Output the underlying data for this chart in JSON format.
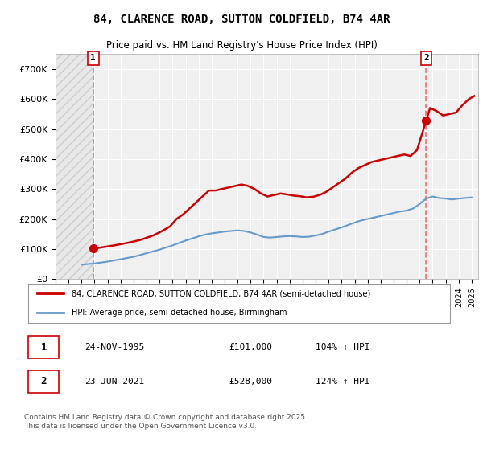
{
  "title": "84, CLARENCE ROAD, SUTTON COLDFIELD, B74 4AR",
  "subtitle": "Price paid vs. HM Land Registry's House Price Index (HPI)",
  "ylim": [
    0,
    750000
  ],
  "yticks": [
    0,
    100000,
    200000,
    300000,
    400000,
    500000,
    600000,
    700000
  ],
  "ylabel_format": "£{0}K",
  "background_color": "#ffffff",
  "plot_bg_color": "#f0f0f0",
  "hatch_color": "#cccccc",
  "grid_color": "#ffffff",
  "red_line_color": "#cc0000",
  "blue_line_color": "#6699cc",
  "vline_color": "#ff6666",
  "marker_color": "#cc0000",
  "annotation_bg": "#ffffff",
  "annotation_border": "#cc0000",
  "legend_label_red": "84, CLARENCE ROAD, SUTTON COLDFIELD, B74 4AR (semi-detached house)",
  "legend_label_blue": "HPI: Average price, semi-detached house, Birmingham",
  "point1_label": "1",
  "point1_date": "24-NOV-1995",
  "point1_price": "£101,000",
  "point1_hpi": "104% ↑ HPI",
  "point1_x": 1995.9,
  "point1_y": 101000,
  "point2_label": "2",
  "point2_date": "23-JUN-2021",
  "point2_price": "£528,000",
  "point2_hpi": "124% ↑ HPI",
  "point2_x": 2021.5,
  "point2_y": 528000,
  "footnote": "Contains HM Land Registry data © Crown copyright and database right 2025.\nThis data is licensed under the Open Government Licence v3.0.",
  "red_series": {
    "x": [
      1995.9,
      1996.5,
      1997.5,
      1998.5,
      1999.5,
      2000.5,
      2001.2,
      2001.8,
      2002.3,
      2002.8,
      2003.3,
      2003.8,
      2004.3,
      2004.8,
      2005.3,
      2005.8,
      2006.3,
      2006.8,
      2007.3,
      2007.8,
      2008.3,
      2008.8,
      2009.3,
      2009.8,
      2010.3,
      2010.8,
      2011.3,
      2011.8,
      2012.3,
      2012.8,
      2013.3,
      2013.8,
      2014.3,
      2014.8,
      2015.3,
      2015.8,
      2016.3,
      2016.8,
      2017.3,
      2017.8,
      2018.3,
      2018.8,
      2019.3,
      2019.8,
      2020.3,
      2020.8,
      2021.5,
      2021.8,
      2022.3,
      2022.8,
      2023.3,
      2023.8,
      2024.3,
      2024.8,
      2025.2
    ],
    "y": [
      101000,
      105000,
      112000,
      120000,
      130000,
      145000,
      160000,
      175000,
      200000,
      215000,
      235000,
      255000,
      275000,
      295000,
      295000,
      300000,
      305000,
      310000,
      315000,
      310000,
      300000,
      285000,
      275000,
      280000,
      285000,
      282000,
      278000,
      276000,
      272000,
      274000,
      280000,
      290000,
      305000,
      320000,
      335000,
      355000,
      370000,
      380000,
      390000,
      395000,
      400000,
      405000,
      410000,
      415000,
      410000,
      430000,
      528000,
      570000,
      560000,
      545000,
      550000,
      555000,
      580000,
      600000,
      610000
    ]
  },
  "blue_series": {
    "x": [
      1995.0,
      1995.5,
      1996.0,
      1996.5,
      1997.0,
      1997.5,
      1998.0,
      1998.5,
      1999.0,
      1999.5,
      2000.0,
      2000.5,
      2001.0,
      2001.5,
      2002.0,
      2002.5,
      2003.0,
      2003.5,
      2004.0,
      2004.5,
      2005.0,
      2005.5,
      2006.0,
      2006.5,
      2007.0,
      2007.5,
      2008.0,
      2008.5,
      2009.0,
      2009.5,
      2010.0,
      2010.5,
      2011.0,
      2011.5,
      2012.0,
      2012.5,
      2013.0,
      2013.5,
      2014.0,
      2014.5,
      2015.0,
      2015.5,
      2016.0,
      2016.5,
      2017.0,
      2017.5,
      2018.0,
      2018.5,
      2019.0,
      2019.5,
      2020.0,
      2020.5,
      2021.0,
      2021.5,
      2022.0,
      2022.5,
      2023.0,
      2023.5,
      2024.0,
      2024.5,
      2025.0
    ],
    "y": [
      48000,
      50000,
      52000,
      55000,
      58000,
      62000,
      66000,
      70000,
      74000,
      80000,
      86000,
      92000,
      98000,
      105000,
      112000,
      120000,
      128000,
      135000,
      142000,
      148000,
      152000,
      155000,
      158000,
      160000,
      162000,
      160000,
      155000,
      148000,
      140000,
      138000,
      140000,
      142000,
      143000,
      142000,
      140000,
      141000,
      145000,
      150000,
      158000,
      165000,
      172000,
      180000,
      188000,
      195000,
      200000,
      205000,
      210000,
      215000,
      220000,
      225000,
      228000,
      235000,
      250000,
      268000,
      275000,
      270000,
      268000,
      265000,
      268000,
      270000,
      272000
    ]
  },
  "xmin": 1993.0,
  "xmax": 2025.5,
  "xtick_years": [
    1993,
    1994,
    1995,
    1996,
    1997,
    1998,
    1999,
    2000,
    2001,
    2002,
    2003,
    2004,
    2005,
    2006,
    2007,
    2008,
    2009,
    2010,
    2011,
    2012,
    2013,
    2014,
    2015,
    2016,
    2017,
    2018,
    2019,
    2020,
    2021,
    2022,
    2023,
    2024,
    2025
  ]
}
